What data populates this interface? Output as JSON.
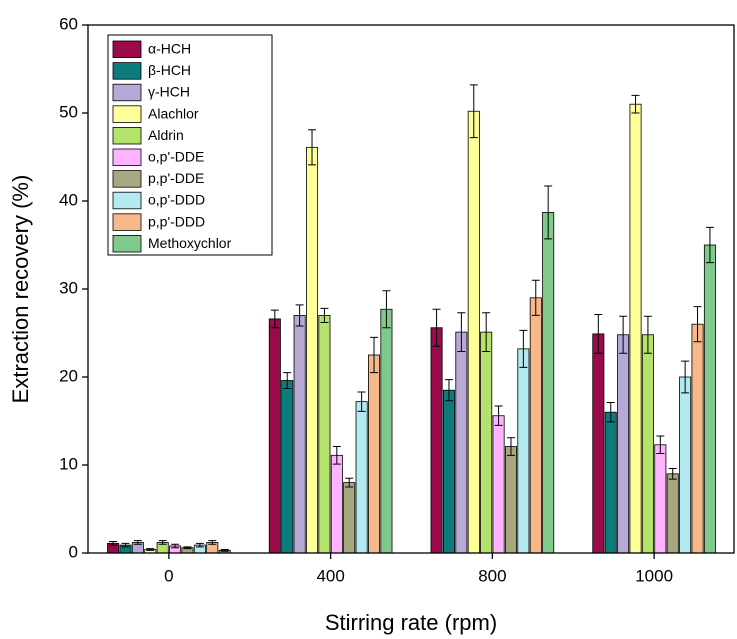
{
  "chart_data": {
    "type": "bar",
    "xlabel": "Stirring rate (rpm)",
    "ylabel": "Extraction recovery (%)",
    "categories": [
      "0",
      "400",
      "800",
      "1000"
    ],
    "ylim": [
      0,
      60
    ],
    "yticks": [
      0,
      10,
      20,
      30,
      40,
      50,
      60
    ],
    "legend": "top-left",
    "series": [
      {
        "name": "α-HCH",
        "color": "#9b0a4b",
        "values": [
          1.1,
          26.6,
          25.6,
          24.9
        ],
        "errors": [
          0.2,
          1.0,
          2.1,
          2.2
        ]
      },
      {
        "name": "β-HCH",
        "color": "#0b7b7b",
        "values": [
          0.9,
          19.6,
          18.5,
          16.0
        ],
        "errors": [
          0.2,
          0.9,
          1.2,
          1.1
        ]
      },
      {
        "name": "γ-HCH",
        "color": "#b7a9d6",
        "values": [
          1.2,
          27.0,
          25.1,
          24.8
        ],
        "errors": [
          0.2,
          1.2,
          2.2,
          2.1
        ]
      },
      {
        "name": "Alachlor",
        "color": "#ffff99",
        "values": [
          0.4,
          46.1,
          50.2,
          51.0
        ],
        "errors": [
          0.1,
          2.0,
          3.0,
          1.0
        ]
      },
      {
        "name": "Aldrin",
        "color": "#b5e26a",
        "values": [
          1.2,
          27.0,
          25.1,
          24.8
        ],
        "errors": [
          0.2,
          0.8,
          2.2,
          2.1
        ]
      },
      {
        "name": "o,p'-DDE",
        "color": "#ffb3ff",
        "values": [
          0.8,
          11.1,
          15.6,
          12.3
        ],
        "errors": [
          0.2,
          1.0,
          1.1,
          1.0
        ]
      },
      {
        "name": "p,p'-DDE",
        "color": "#a8a880",
        "values": [
          0.6,
          8.0,
          12.1,
          9.0
        ],
        "errors": [
          0.1,
          0.5,
          1.0,
          0.6
        ]
      },
      {
        "name": "o,p'-DDD",
        "color": "#b3eaf0",
        "values": [
          0.9,
          17.2,
          23.2,
          20.0
        ],
        "errors": [
          0.2,
          1.1,
          2.1,
          1.8
        ]
      },
      {
        "name": "p,p'-DDD",
        "color": "#f7b98a",
        "values": [
          1.2,
          22.5,
          29.0,
          26.0
        ],
        "errors": [
          0.2,
          2.0,
          2.0,
          2.0
        ]
      },
      {
        "name": "Methoxychlor",
        "color": "#7fc98a",
        "values": [
          0.3,
          27.7,
          38.7,
          35.0
        ],
        "errors": [
          0.1,
          2.1,
          3.0,
          2.0
        ]
      }
    ]
  }
}
